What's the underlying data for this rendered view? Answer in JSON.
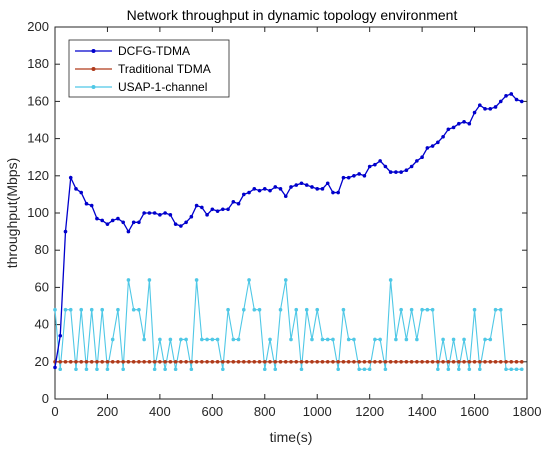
{
  "chart_data": {
    "type": "line",
    "title": "Network throughput in dynamic topology environment",
    "xlabel": "time(s)",
    "ylabel": "throughput(Mbps)",
    "xlim": [
      0,
      1800
    ],
    "ylim": [
      0,
      200
    ],
    "xticks": [
      0,
      200,
      400,
      600,
      800,
      1000,
      1200,
      1400,
      1600,
      1800
    ],
    "yticks": [
      0,
      20,
      40,
      60,
      80,
      100,
      120,
      140,
      160,
      180,
      200
    ],
    "grid": false,
    "legend_position": "top-left",
    "series": [
      {
        "name": "DCFG-TDMA",
        "color": "#0000cc",
        "marker": "dot",
        "x": [
          0,
          20,
          40,
          60,
          80,
          100,
          120,
          140,
          160,
          180,
          200,
          220,
          240,
          260,
          280,
          300,
          320,
          340,
          360,
          380,
          400,
          420,
          440,
          460,
          480,
          500,
          520,
          540,
          560,
          580,
          600,
          620,
          640,
          660,
          680,
          700,
          720,
          740,
          760,
          780,
          800,
          820,
          840,
          860,
          880,
          900,
          920,
          940,
          960,
          980,
          1000,
          1020,
          1040,
          1060,
          1080,
          1100,
          1120,
          1140,
          1160,
          1180,
          1200,
          1220,
          1240,
          1260,
          1280,
          1300,
          1320,
          1340,
          1360,
          1380,
          1400,
          1420,
          1440,
          1460,
          1480,
          1500,
          1520,
          1540,
          1560,
          1580,
          1600,
          1620,
          1640,
          1660,
          1680,
          1700,
          1720,
          1740,
          1760,
          1780
        ],
        "values": [
          17,
          34,
          90,
          119,
          113,
          111,
          105,
          104,
          97,
          96,
          94,
          96,
          97,
          95,
          90,
          95,
          95,
          100,
          100,
          100,
          99,
          100,
          99,
          94,
          93,
          95,
          98,
          104,
          103,
          99,
          102,
          101,
          102,
          102,
          106,
          105,
          110,
          111,
          113,
          112,
          113,
          112,
          114,
          113,
          109,
          114,
          115,
          116,
          115,
          114,
          113,
          113,
          116,
          111,
          111,
          119,
          119,
          120,
          121,
          120,
          125,
          126,
          128,
          125,
          122,
          122,
          122,
          123,
          125,
          128,
          130,
          135,
          136,
          138,
          141,
          145,
          146,
          148,
          149,
          148,
          154,
          158,
          156,
          156,
          157,
          160,
          163,
          164,
          161,
          160
        ]
      },
      {
        "name": "Traditional TDMA",
        "color": "#b03a1a",
        "marker": "dot",
        "x": [
          0,
          20,
          40,
          60,
          80,
          100,
          120,
          140,
          160,
          180,
          200,
          220,
          240,
          260,
          280,
          300,
          320,
          340,
          360,
          380,
          400,
          420,
          440,
          460,
          480,
          500,
          520,
          540,
          560,
          580,
          600,
          620,
          640,
          660,
          680,
          700,
          720,
          740,
          760,
          780,
          800,
          820,
          840,
          860,
          880,
          900,
          920,
          940,
          960,
          980,
          1000,
          1020,
          1040,
          1060,
          1080,
          1100,
          1120,
          1140,
          1160,
          1180,
          1200,
          1220,
          1240,
          1260,
          1280,
          1300,
          1320,
          1340,
          1360,
          1380,
          1400,
          1420,
          1440,
          1460,
          1480,
          1500,
          1520,
          1540,
          1560,
          1580,
          1600,
          1620,
          1640,
          1660,
          1680,
          1700,
          1720,
          1740,
          1760,
          1780
        ],
        "values": [
          20,
          20,
          20,
          20,
          20,
          20,
          20,
          20,
          20,
          20,
          20,
          20,
          20,
          20,
          20,
          20,
          20,
          20,
          20,
          20,
          20,
          20,
          20,
          20,
          20,
          20,
          20,
          20,
          20,
          20,
          20,
          20,
          20,
          20,
          20,
          20,
          20,
          20,
          20,
          20,
          20,
          20,
          20,
          20,
          20,
          20,
          20,
          20,
          20,
          20,
          20,
          20,
          20,
          20,
          20,
          20,
          20,
          20,
          20,
          20,
          20,
          20,
          20,
          20,
          20,
          20,
          20,
          20,
          20,
          20,
          20,
          20,
          20,
          20,
          20,
          20,
          20,
          20,
          20,
          20,
          20,
          20,
          20,
          20,
          20,
          20,
          20,
          20,
          20,
          20
        ]
      },
      {
        "name": "USAP-1-channel",
        "color": "#4fc8e6",
        "marker": "dot",
        "x": [
          0,
          20,
          40,
          60,
          80,
          100,
          120,
          140,
          160,
          180,
          200,
          220,
          240,
          260,
          280,
          300,
          320,
          340,
          360,
          380,
          400,
          420,
          440,
          460,
          480,
          500,
          520,
          540,
          560,
          580,
          600,
          620,
          640,
          660,
          680,
          700,
          720,
          740,
          760,
          780,
          800,
          820,
          840,
          860,
          880,
          900,
          920,
          940,
          960,
          980,
          1000,
          1020,
          1040,
          1060,
          1080,
          1100,
          1120,
          1140,
          1160,
          1180,
          1200,
          1220,
          1240,
          1260,
          1280,
          1300,
          1320,
          1340,
          1360,
          1380,
          1400,
          1420,
          1440,
          1460,
          1480,
          1500,
          1520,
          1540,
          1560,
          1580,
          1600,
          1620,
          1640,
          1660,
          1680,
          1700,
          1720,
          1740,
          1760,
          1780
        ],
        "values": [
          48,
          16,
          48,
          48,
          16,
          48,
          16,
          48,
          16,
          48,
          16,
          32,
          48,
          16,
          64,
          48,
          48,
          32,
          64,
          16,
          32,
          16,
          32,
          16,
          32,
          32,
          16,
          64,
          32,
          32,
          32,
          32,
          16,
          48,
          32,
          32,
          48,
          64,
          48,
          48,
          16,
          32,
          16,
          48,
          64,
          32,
          48,
          16,
          48,
          32,
          48,
          32,
          32,
          32,
          16,
          48,
          32,
          32,
          16,
          16,
          16,
          32,
          32,
          16,
          64,
          32,
          48,
          32,
          48,
          32,
          48,
          48,
          48,
          16,
          32,
          16,
          32,
          16,
          32,
          16,
          48,
          16,
          32,
          32,
          48,
          48,
          16,
          16,
          16,
          16
        ]
      }
    ]
  }
}
